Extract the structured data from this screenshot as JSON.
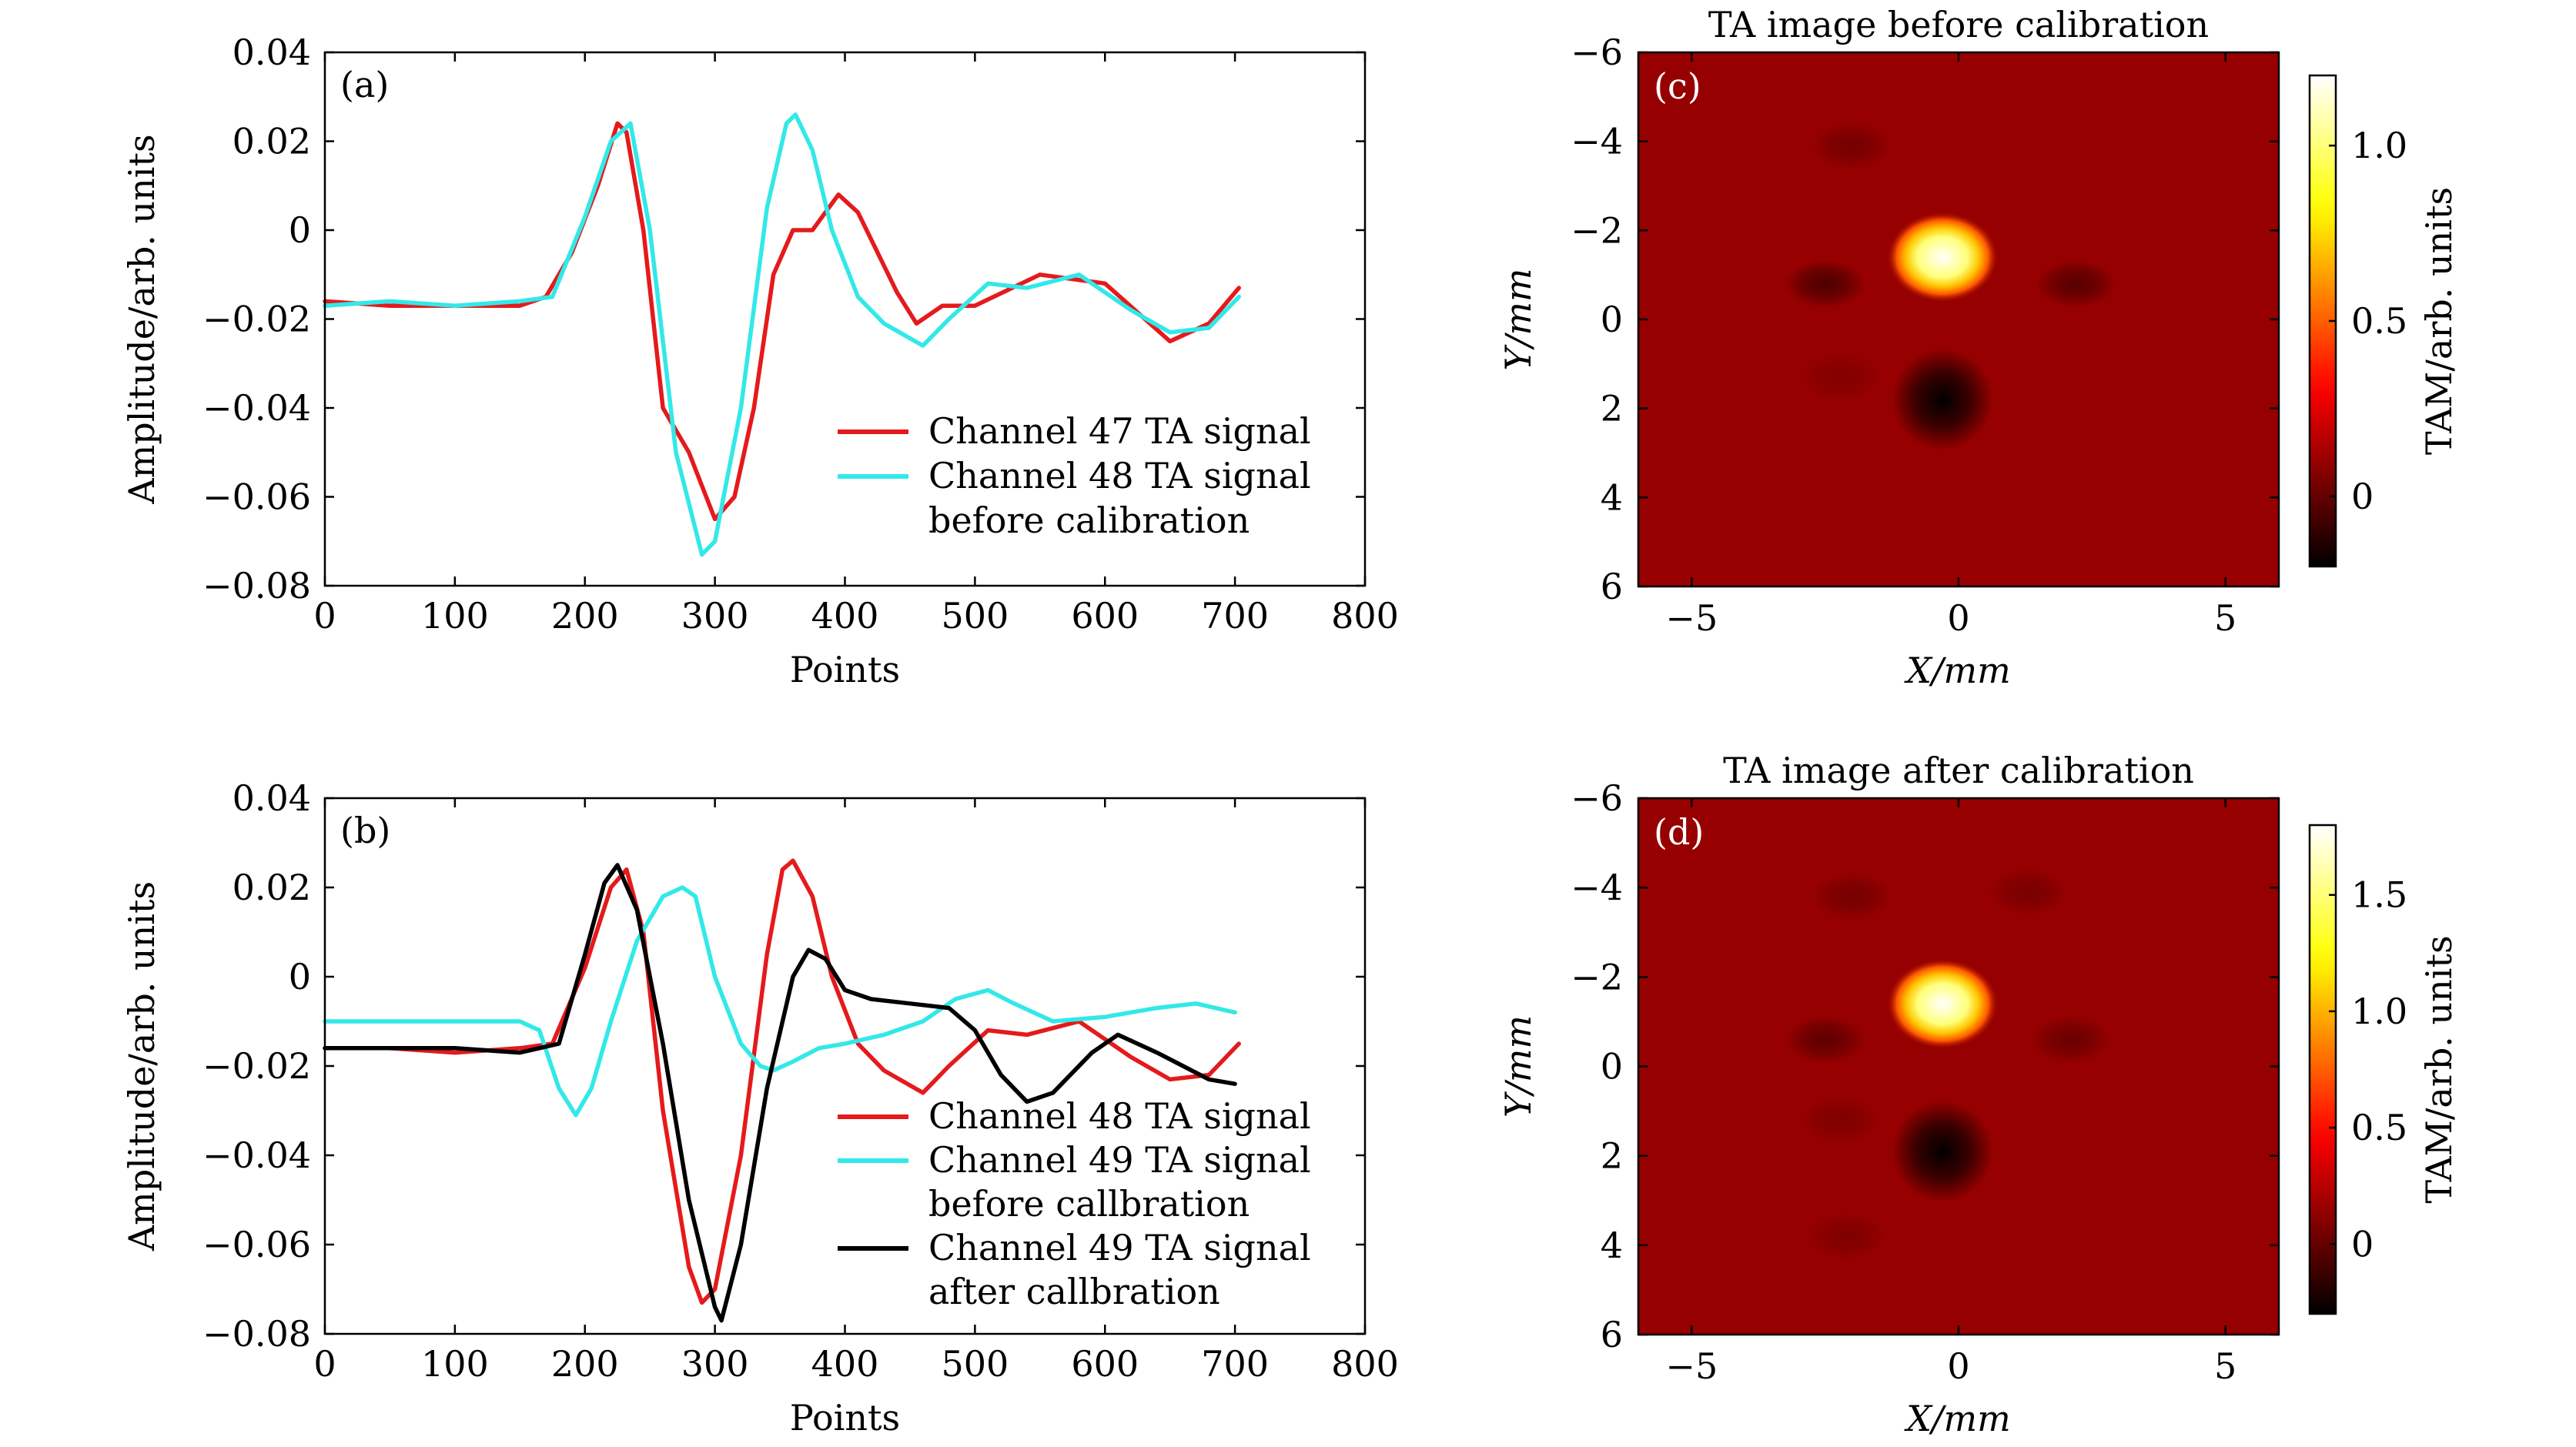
{
  "chart_data": [
    {
      "panel": "(a)",
      "type": "line",
      "title": "",
      "xlabel": "Points",
      "ylabel": "Amplitude/arb. units",
      "xlim": [
        0,
        800
      ],
      "ylim": [
        -0.08,
        0.04
      ],
      "xticks": [
        "0",
        "100",
        "200",
        "300",
        "400",
        "500",
        "600",
        "700",
        "800"
      ],
      "yticks": [
        "0.04",
        "0.02",
        "0",
        "−0.02",
        "−0.04",
        "−0.06",
        "−0.08"
      ],
      "series": [
        {
          "name": "Channel 47 TA signal",
          "color": "#e41a1c",
          "x": [
            0,
            50,
            100,
            150,
            170,
            190,
            210,
            225,
            232,
            245,
            260,
            280,
            300,
            315,
            330,
            345,
            360,
            375,
            385,
            395,
            410,
            440,
            455,
            475,
            500,
            550,
            600,
            650,
            680,
            703
          ],
          "y": [
            -0.016,
            -0.017,
            -0.017,
            -0.017,
            -0.015,
            -0.005,
            0.01,
            0.024,
            0.022,
            0.0,
            -0.04,
            -0.05,
            -0.065,
            -0.06,
            -0.04,
            -0.01,
            0.0,
            0.0,
            0.004,
            0.008,
            0.004,
            -0.014,
            -0.021,
            -0.017,
            -0.017,
            -0.01,
            -0.012,
            -0.025,
            -0.021,
            -0.013
          ]
        },
        {
          "name": "Channel 48 TA signal",
          "name_line2": "before calibration",
          "color": "#33e8e8",
          "x": [
            0,
            50,
            100,
            150,
            175,
            200,
            220,
            235,
            250,
            270,
            290,
            300,
            320,
            340,
            355,
            362,
            375,
            390,
            410,
            430,
            460,
            480,
            510,
            540,
            580,
            620,
            650,
            680,
            703
          ],
          "y": [
            -0.017,
            -0.016,
            -0.017,
            -0.016,
            -0.015,
            0.003,
            0.02,
            0.024,
            0.0,
            -0.05,
            -0.073,
            -0.07,
            -0.04,
            0.005,
            0.024,
            0.026,
            0.018,
            0.0,
            -0.015,
            -0.021,
            -0.026,
            -0.02,
            -0.012,
            -0.013,
            -0.01,
            -0.018,
            -0.023,
            -0.022,
            -0.015
          ]
        }
      ]
    },
    {
      "panel": "(b)",
      "type": "line",
      "title": "",
      "xlabel": "Points",
      "ylabel": "Amplitude/arb. units",
      "xlim": [
        0,
        800
      ],
      "ylim": [
        -0.08,
        0.04
      ],
      "xticks": [
        "0",
        "100",
        "200",
        "300",
        "400",
        "500",
        "600",
        "700",
        "800"
      ],
      "yticks": [
        "0.04",
        "0.02",
        "0",
        "−0.02",
        "−0.04",
        "−0.06",
        "−0.08"
      ],
      "series": [
        {
          "name": "Channel 48 TA signal",
          "color": "#e41a1c",
          "x": [
            0,
            50,
            100,
            150,
            175,
            200,
            220,
            232,
            245,
            260,
            280,
            290,
            300,
            320,
            340,
            352,
            360,
            375,
            390,
            410,
            430,
            460,
            480,
            510,
            540,
            580,
            620,
            650,
            680,
            703
          ],
          "y": [
            -0.016,
            -0.016,
            -0.017,
            -0.016,
            -0.015,
            0.002,
            0.02,
            0.024,
            0.01,
            -0.03,
            -0.065,
            -0.073,
            -0.07,
            -0.04,
            0.005,
            0.024,
            0.026,
            0.018,
            0.0,
            -0.015,
            -0.021,
            -0.026,
            -0.02,
            -0.012,
            -0.013,
            -0.01,
            -0.018,
            -0.023,
            -0.022,
            -0.015
          ]
        },
        {
          "name": "Channel 49 TA signal",
          "name_line2": "before callbration",
          "color": "#33e8e8",
          "x": [
            0,
            50,
            100,
            150,
            165,
            180,
            193,
            205,
            220,
            240,
            260,
            275,
            285,
            300,
            320,
            335,
            345,
            360,
            380,
            400,
            430,
            460,
            485,
            510,
            530,
            560,
            600,
            640,
            670,
            700
          ],
          "y": [
            -0.01,
            -0.01,
            -0.01,
            -0.01,
            -0.012,
            -0.025,
            -0.031,
            -0.025,
            -0.01,
            0.008,
            0.018,
            0.02,
            0.018,
            0.0,
            -0.015,
            -0.02,
            -0.021,
            -0.019,
            -0.016,
            -0.015,
            -0.013,
            -0.01,
            -0.005,
            -0.003,
            -0.006,
            -0.01,
            -0.009,
            -0.007,
            -0.006,
            -0.008
          ]
        },
        {
          "name": "Channel 49 TA signal",
          "name_line2": "after callbration",
          "color": "#000000",
          "x": [
            0,
            50,
            100,
            150,
            165,
            180,
            200,
            215,
            225,
            240,
            260,
            280,
            300,
            305,
            320,
            340,
            360,
            372,
            385,
            400,
            420,
            450,
            480,
            500,
            520,
            540,
            560,
            590,
            610,
            640,
            660,
            680,
            700
          ],
          "y": [
            -0.016,
            -0.016,
            -0.016,
            -0.017,
            -0.016,
            -0.015,
            0.005,
            0.021,
            0.025,
            0.015,
            -0.015,
            -0.05,
            -0.074,
            -0.077,
            -0.06,
            -0.025,
            0.0,
            0.006,
            0.004,
            -0.003,
            -0.005,
            -0.006,
            -0.007,
            -0.012,
            -0.022,
            -0.028,
            -0.026,
            -0.017,
            -0.013,
            -0.017,
            -0.02,
            -0.023,
            -0.024
          ]
        }
      ]
    },
    {
      "panel": "(c)",
      "type": "heatmap",
      "title": "TA image before calibration",
      "xlabel": "X/mm",
      "ylabel": "Y/mm",
      "xlim": [
        -6,
        6
      ],
      "ylim": [
        -6,
        6
      ],
      "y_inverted": true,
      "xticks": [
        "−5",
        "0",
        "5"
      ],
      "yticks": [
        "−6",
        "−4",
        "−2",
        "0",
        "2",
        "4",
        "6"
      ],
      "colorbar": {
        "label": "TAM/arb. units",
        "range": [
          -0.2,
          1.2
        ],
        "ticks": [
          1.0,
          0.5,
          0
        ],
        "tick_labels": [
          "1.0",
          "0.5",
          "0"
        ],
        "colormap": "hot"
      },
      "background_value": 0.1,
      "blobs": [
        {
          "x": -0.3,
          "y": -1.4,
          "value": 1.2
        },
        {
          "x": -0.3,
          "y": 1.8,
          "value": -0.2
        },
        {
          "x": -2.5,
          "y": -0.8,
          "value": -0.05
        },
        {
          "x": 2.2,
          "y": -0.8,
          "value": -0.03
        },
        {
          "x": -2.0,
          "y": -3.9,
          "value": 0.03
        },
        {
          "x": -2.2,
          "y": 1.3,
          "value": 0.06
        }
      ]
    },
    {
      "panel": "(d)",
      "type": "heatmap",
      "title": "TA image after calibration",
      "xlabel": "X/mm",
      "ylabel": "Y/mm",
      "xlim": [
        -6,
        6
      ],
      "ylim": [
        -6,
        6
      ],
      "y_inverted": true,
      "xticks": [
        "−5",
        "0",
        "5"
      ],
      "yticks": [
        "−6",
        "−4",
        "−2",
        "0",
        "2",
        "4",
        "6"
      ],
      "colorbar": {
        "label": "TAM/arb. units",
        "range": [
          -0.3,
          1.8
        ],
        "ticks": [
          1.5,
          1.0,
          0.5,
          0
        ],
        "tick_labels": [
          "1.5",
          "1.0",
          "0.5",
          "0"
        ],
        "colormap": "hot"
      },
      "background_value": 0.15,
      "blobs": [
        {
          "x": -0.3,
          "y": -1.4,
          "value": 1.8
        },
        {
          "x": -0.3,
          "y": 1.9,
          "value": -0.3
        },
        {
          "x": -2.5,
          "y": -0.6,
          "value": -0.02
        },
        {
          "x": 2.1,
          "y": -0.6,
          "value": 0.02
        },
        {
          "x": -2.0,
          "y": -3.8,
          "value": 0.05
        },
        {
          "x": 1.3,
          "y": -3.9,
          "value": 0.06
        },
        {
          "x": -2.2,
          "y": 1.2,
          "value": 0.08
        },
        {
          "x": -2.1,
          "y": 3.8,
          "value": 0.08
        }
      ]
    }
  ]
}
